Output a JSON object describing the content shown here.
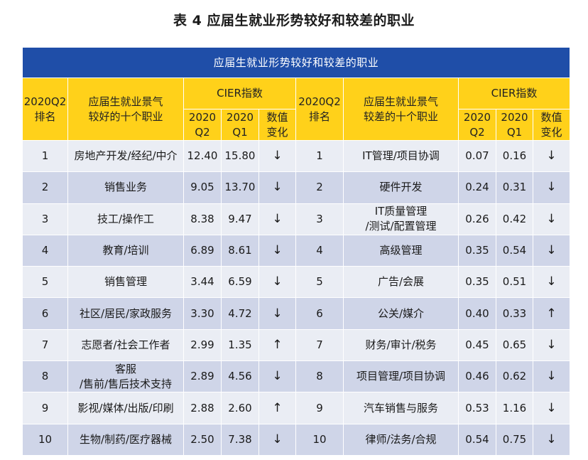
{
  "caption": "表 4 应届生就业形势较好和较差的职业",
  "table": {
    "title": "应届生就业形势较好和较差的职业",
    "headers": {
      "rank_left": "2020Q2\n排名",
      "jobs_good": "应届生就业景气\n较好的十个职业",
      "cier": "CIER指数",
      "q2": "2020\nQ2",
      "q1": "2020\nQ1",
      "change": "数值\n变化",
      "rank_right": "2020Q2\n排名",
      "jobs_bad": "应届生就业景气\n较差的十个职业"
    },
    "rows": [
      {
        "rank": "1",
        "job": "房地产开发/经纪/中介",
        "q2": "12.40",
        "q1": "15.80",
        "chg": "↓",
        "rank2": "1",
        "job2": "IT管理/项目协调",
        "q2b": "0.07",
        "q1b": "0.16",
        "chg2": "↓"
      },
      {
        "rank": "2",
        "job": "销售业务",
        "q2": "9.05",
        "q1": "13.70",
        "chg": "↓",
        "rank2": "2",
        "job2": "硬件开发",
        "q2b": "0.24",
        "q1b": "0.31",
        "chg2": "↓"
      },
      {
        "rank": "3",
        "job": "技工/操作工",
        "q2": "8.38",
        "q1": "9.47",
        "chg": "↓",
        "rank2": "3",
        "job2": "IT质量管理\n/测试/配置管理",
        "q2b": "0.26",
        "q1b": "0.42",
        "chg2": "↓"
      },
      {
        "rank": "4",
        "job": "教育/培训",
        "q2": "6.89",
        "q1": "8.61",
        "chg": "↓",
        "rank2": "4",
        "job2": "高级管理",
        "q2b": "0.35",
        "q1b": "0.54",
        "chg2": "↓"
      },
      {
        "rank": "5",
        "job": "销售管理",
        "q2": "3.44",
        "q1": "6.59",
        "chg": "↓",
        "rank2": "5",
        "job2": "广告/会展",
        "q2b": "0.35",
        "q1b": "0.51",
        "chg2": "↓"
      },
      {
        "rank": "6",
        "job": "社区/居民/家政服务",
        "q2": "3.30",
        "q1": "4.72",
        "chg": "↓",
        "rank2": "6",
        "job2": "公关/媒介",
        "q2b": "0.40",
        "q1b": "0.33",
        "chg2": "↑"
      },
      {
        "rank": "7",
        "job": "志愿者/社会工作者",
        "q2": "2.99",
        "q1": "1.35",
        "chg": "↑",
        "rank2": "7",
        "job2": "财务/审计/税务",
        "q2b": "0.45",
        "q1b": "0.65",
        "chg2": "↓"
      },
      {
        "rank": "8",
        "job": "客服\n/售前/售后技术支持",
        "q2": "2.89",
        "q1": "4.56",
        "chg": "↓",
        "rank2": "8",
        "job2": "项目管理/项目协调",
        "q2b": "0.46",
        "q1b": "0.62",
        "chg2": "↓"
      },
      {
        "rank": "9",
        "job": "影视/媒体/出版/印刷",
        "q2": "2.88",
        "q1": "2.60",
        "chg": "↑",
        "rank2": "9",
        "job2": "汽车销售与服务",
        "q2b": "0.53",
        "q1b": "1.16",
        "chg2": "↓"
      },
      {
        "rank": "10",
        "job": "生物/制药/医疗器械",
        "q2": "2.50",
        "q1": "7.38",
        "chg": "↓",
        "rank2": "10",
        "job2": "律师/法务/合规",
        "q2b": "0.54",
        "q1b": "0.75",
        "chg2": "↓"
      }
    ]
  }
}
